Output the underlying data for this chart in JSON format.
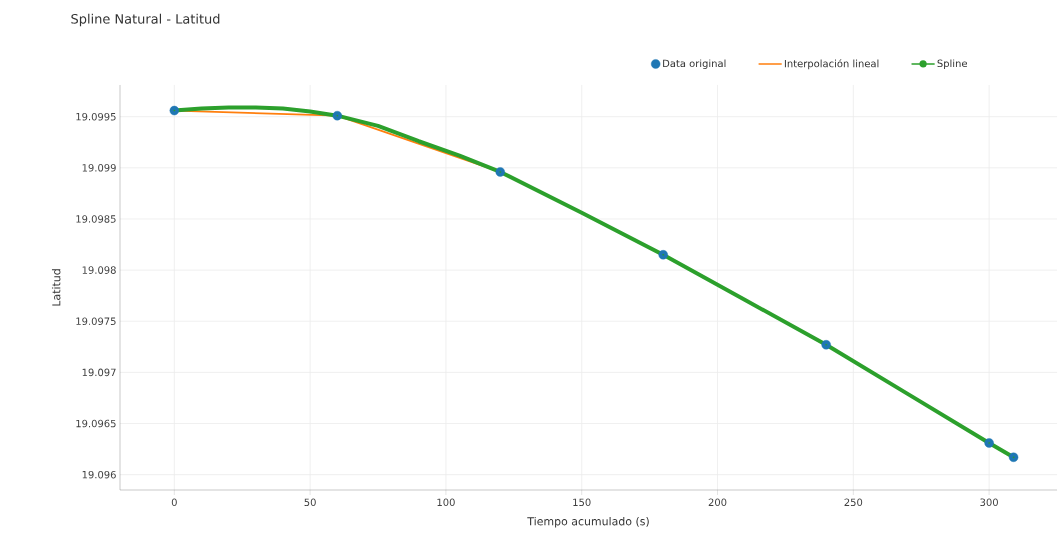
{
  "chart_data": {
    "type": "line",
    "title": "Spline Natural - Latitud",
    "xlabel": "Tiempo acumulado (s)",
    "ylabel": "Latitud",
    "xlim": [
      -20,
      325
    ],
    "xticks": [
      0,
      50,
      100,
      150,
      200,
      250,
      300
    ],
    "ylim": [
      19.09585,
      19.09981
    ],
    "yticks": [
      19.096,
      19.0965,
      19.097,
      19.0975,
      19.098,
      19.0985,
      19.099,
      19.0995
    ],
    "grid": true,
    "legend": "top right",
    "series": [
      {
        "name": "Data original",
        "type": "scatter",
        "marker": "circle",
        "color": "#1f77b4",
        "x": [
          0,
          60,
          120,
          180,
          240,
          300,
          309
        ],
        "values": [
          19.09956,
          19.09951,
          19.09896,
          19.09815,
          19.09727,
          19.09631,
          19.09617
        ]
      },
      {
        "name": "Interpolación lineal",
        "marker": "none",
        "color": "#ff7f0e",
        "x": [
          0,
          60,
          120
        ],
        "values": [
          19.09956,
          19.09951,
          19.09896
        ]
      },
      {
        "name": "Spline",
        "type": "line",
        "marker": "circle",
        "color": "#2ca02c",
        "x": [
          0,
          10,
          20,
          30,
          40,
          50,
          60,
          75,
          90,
          105,
          120,
          150,
          180,
          210,
          240,
          270,
          300,
          309
        ],
        "values": [
          19.09956,
          19.09958,
          19.09959,
          19.09959,
          19.09958,
          19.09955,
          19.09951,
          19.09941,
          19.09926,
          19.09912,
          19.09896,
          19.09856,
          19.09815,
          19.09771,
          19.09727,
          19.09679,
          19.09631,
          19.09617
        ]
      }
    ]
  }
}
